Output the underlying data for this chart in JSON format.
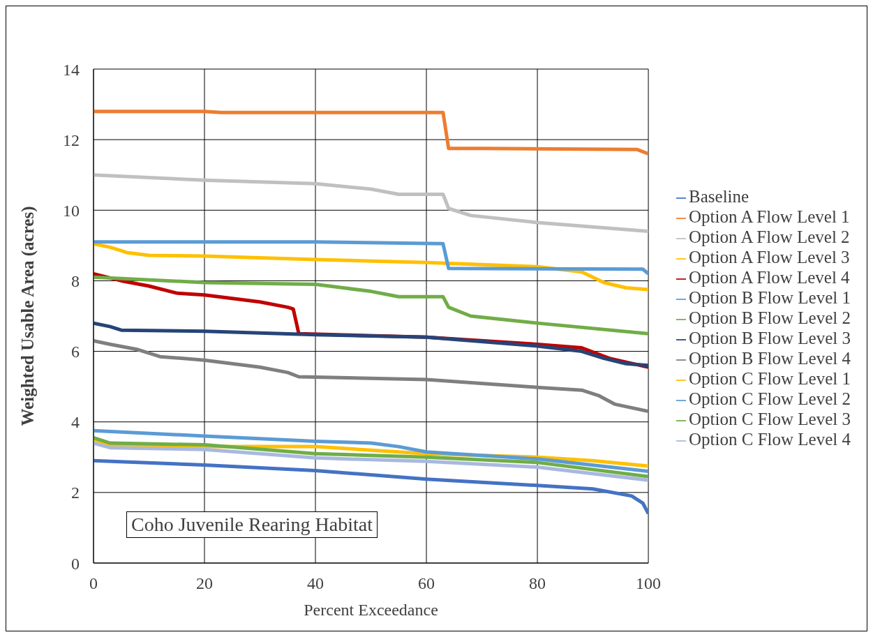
{
  "chart_data": {
    "type": "line",
    "xlabel": "Percent Exceedance",
    "ylabel": "Weighted Usable Area (acres)",
    "annotations": [
      "Coho Juvenile Rearing Habitat"
    ],
    "xlim": [
      0,
      100
    ],
    "xticks": [
      0,
      20,
      40,
      60,
      80,
      100
    ],
    "ylim": [
      0,
      14
    ],
    "yticks": [
      0,
      2,
      4,
      6,
      8,
      10,
      12,
      14
    ],
    "grid": true,
    "legend": "right",
    "marker": "none",
    "line_style": "solid",
    "series": [
      {
        "name": "Baseline",
        "color": "#4472c4",
        "x": [
          0,
          20,
          40,
          60,
          80,
          90,
          97,
          99,
          100
        ],
        "values": [
          2.9,
          2.78,
          2.62,
          2.38,
          2.2,
          2.1,
          1.9,
          1.7,
          1.4
        ]
      },
      {
        "name": "Option A Flow Level 1",
        "color": "#ed7d31",
        "x": [
          0,
          20,
          23,
          63,
          64,
          70,
          98,
          100
        ],
        "values": [
          12.8,
          12.8,
          12.77,
          12.77,
          11.75,
          11.75,
          11.72,
          11.6
        ]
      },
      {
        "name": "Option A Flow Level 2",
        "color": "#c0c0c0",
        "x": [
          0,
          20,
          40,
          50,
          55,
          63,
          64,
          68,
          80,
          100
        ],
        "values": [
          11.0,
          10.85,
          10.75,
          10.6,
          10.45,
          10.45,
          10.05,
          9.85,
          9.65,
          9.4
        ]
      },
      {
        "name": "Option A Flow Level 3",
        "color": "#ffc000",
        "x": [
          0,
          3,
          6,
          10,
          20,
          40,
          60,
          80,
          88,
          92,
          96,
          100
        ],
        "values": [
          9.05,
          8.95,
          8.8,
          8.72,
          8.7,
          8.6,
          8.52,
          8.4,
          8.25,
          7.95,
          7.8,
          7.75
        ]
      },
      {
        "name": "Option A Flow Level 4",
        "color": "#c00000",
        "x": [
          0,
          5,
          10,
          15,
          20,
          30,
          35,
          36,
          37,
          60,
          80,
          88,
          93,
          100
        ],
        "values": [
          8.2,
          8.0,
          7.85,
          7.65,
          7.6,
          7.4,
          7.25,
          7.2,
          6.5,
          6.4,
          6.2,
          6.1,
          5.8,
          5.55
        ]
      },
      {
        "name": "Option B Flow Level 1",
        "color": "#5b9bd5",
        "x": [
          0,
          40,
          63,
          64,
          99,
          100
        ],
        "values": [
          9.1,
          9.1,
          9.05,
          8.35,
          8.33,
          8.2
        ]
      },
      {
        "name": "Option B Flow Level 2",
        "color": "#70ad47",
        "x": [
          0,
          20,
          40,
          45,
          50,
          55,
          63,
          64,
          68,
          80,
          100
        ],
        "values": [
          8.1,
          7.95,
          7.9,
          7.8,
          7.7,
          7.55,
          7.55,
          7.25,
          7.0,
          6.8,
          6.5
        ]
      },
      {
        "name": "Option B Flow Level 3",
        "color": "#264478",
        "x": [
          0,
          3,
          5,
          20,
          40,
          60,
          80,
          88,
          92,
          96,
          100
        ],
        "values": [
          6.8,
          6.7,
          6.6,
          6.57,
          6.47,
          6.4,
          6.15,
          6.0,
          5.8,
          5.65,
          5.6
        ]
      },
      {
        "name": "Option B Flow Level 4",
        "color": "#7f7f7f",
        "x": [
          0,
          3,
          8,
          12,
          20,
          30,
          35,
          37,
          40,
          60,
          80,
          88,
          91,
          94,
          100
        ],
        "values": [
          6.3,
          6.2,
          6.05,
          5.85,
          5.75,
          5.55,
          5.4,
          5.28,
          5.27,
          5.2,
          4.98,
          4.9,
          4.75,
          4.5,
          4.3
        ]
      },
      {
        "name": "Option C Flow Level 1",
        "color": "#ffc000",
        "x": [
          0,
          3,
          20,
          40,
          50,
          60,
          80,
          90,
          100
        ],
        "values": [
          3.5,
          3.35,
          3.3,
          3.3,
          3.2,
          3.1,
          3.0,
          2.9,
          2.75
        ]
      },
      {
        "name": "Option C Flow Level 2",
        "color": "#5b9bd5",
        "x": [
          0,
          20,
          40,
          50,
          55,
          60,
          80,
          100
        ],
        "values": [
          3.75,
          3.6,
          3.45,
          3.4,
          3.3,
          3.15,
          2.95,
          2.6
        ]
      },
      {
        "name": "Option C Flow Level 3",
        "color": "#70ad47",
        "x": [
          0,
          3,
          20,
          40,
          60,
          80,
          100
        ],
        "values": [
          3.55,
          3.4,
          3.35,
          3.1,
          3.0,
          2.85,
          2.45
        ]
      },
      {
        "name": "Option C Flow Level 4",
        "color": "#a9b8e0",
        "x": [
          0,
          3,
          20,
          40,
          60,
          80,
          100
        ],
        "values": [
          3.4,
          3.27,
          3.22,
          2.98,
          2.88,
          2.72,
          2.35
        ]
      }
    ]
  }
}
